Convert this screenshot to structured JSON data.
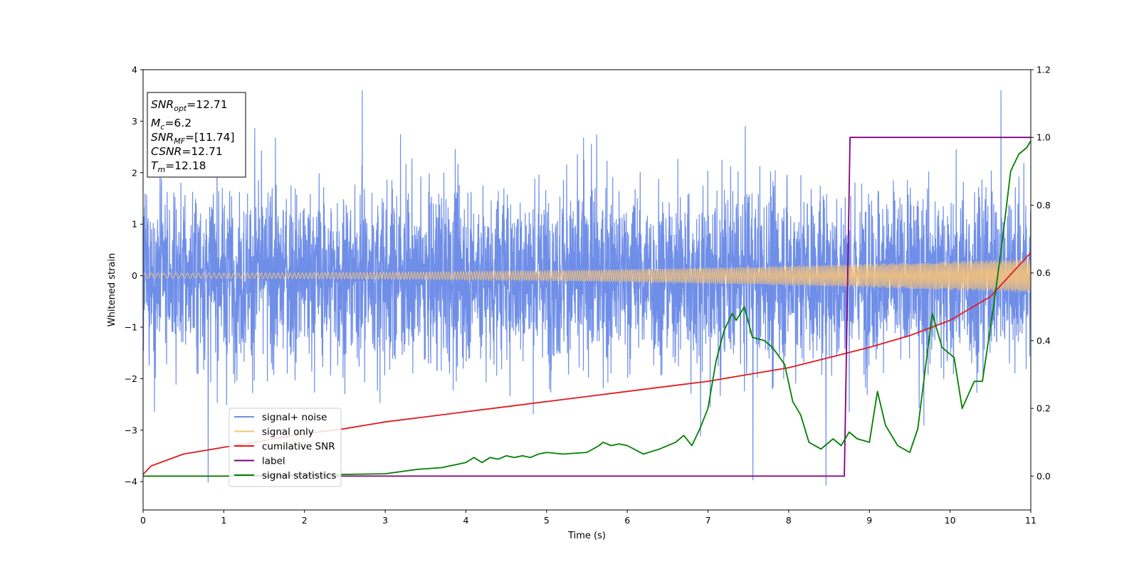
{
  "chart_data": {
    "type": "line",
    "xlabel": "Time (s)",
    "ylabel": "Whitened strain",
    "xlim": [
      0,
      11
    ],
    "ylim_left": [
      -4.55,
      4
    ],
    "ylim_right": [
      -0.1,
      1.2
    ],
    "x_ticks": [
      0,
      1,
      2,
      3,
      4,
      5,
      6,
      7,
      8,
      9,
      10,
      11
    ],
    "y_ticks_left": [
      4,
      3,
      2,
      1,
      0,
      -1,
      -2,
      -3,
      -4
    ],
    "y_ticks_left_labels": [
      "4",
      "3",
      "2",
      "1",
      "0",
      "−1",
      "−2",
      "−3",
      "−4"
    ],
    "y_ticks_right": [
      1.2,
      1.0,
      0.8,
      0.6,
      0.4,
      0.2,
      0.0
    ],
    "y_ticks_right_labels": [
      "1.2",
      "1.0",
      "0.8",
      "0.6",
      "0.4",
      "0.2",
      "0.0"
    ],
    "grid": false,
    "legend_position": "lower-left",
    "series": [
      {
        "name": "signal+ noise",
        "color": "#6f8ee8",
        "axis": "left",
        "kind": "noise",
        "amplitude_envelope": {
          "typical": 1.0,
          "peak": 3.6
        }
      },
      {
        "name": "signal only",
        "color": "#f5c27a",
        "axis": "left",
        "kind": "chirp",
        "amplitude_start": 0.05,
        "amplitude_end": 0.33
      },
      {
        "name": "cumilative SNR",
        "color": "#e31a1c",
        "axis": "right",
        "x": [
          0,
          0.1,
          0.5,
          1,
          1.5,
          2,
          2.5,
          3,
          3.5,
          4,
          4.5,
          5,
          5.5,
          6,
          6.5,
          7,
          7.5,
          8,
          8.5,
          9,
          9.5,
          10,
          10.5,
          11
        ],
        "y": [
          0.005,
          0.03,
          0.065,
          0.085,
          0.105,
          0.125,
          0.14,
          0.16,
          0.175,
          0.19,
          0.205,
          0.22,
          0.235,
          0.25,
          0.265,
          0.28,
          0.3,
          0.32,
          0.35,
          0.38,
          0.415,
          0.46,
          0.53,
          0.66
        ]
      },
      {
        "name": "label",
        "color": "#800080",
        "axis": "right",
        "x": [
          0,
          8.69,
          8.76,
          11
        ],
        "y": [
          0,
          0,
          1,
          1
        ]
      },
      {
        "name": "signal statistics",
        "color": "#007f00",
        "axis": "right",
        "x": [
          0,
          0.5,
          1,
          1.5,
          2,
          2.5,
          3,
          3.4,
          3.7,
          4.0,
          4.1,
          4.2,
          4.3,
          4.4,
          4.5,
          4.6,
          4.7,
          4.8,
          4.9,
          5.0,
          5.2,
          5.5,
          5.65,
          5.7,
          5.8,
          5.9,
          6.0,
          6.2,
          6.4,
          6.6,
          6.7,
          6.8,
          6.9,
          7.0,
          7.1,
          7.2,
          7.3,
          7.35,
          7.45,
          7.55,
          7.7,
          7.8,
          7.95,
          8.05,
          8.15,
          8.25,
          8.4,
          8.55,
          8.65,
          8.75,
          8.85,
          9.0,
          9.1,
          9.2,
          9.35,
          9.5,
          9.6,
          9.7,
          9.78,
          9.9,
          10.05,
          10.15,
          10.3,
          10.4,
          10.55,
          10.65,
          10.75,
          10.85,
          10.95,
          11
        ],
        "y": [
          0,
          0,
          0,
          0.002,
          0.003,
          0.005,
          0.007,
          0.02,
          0.025,
          0.04,
          0.055,
          0.04,
          0.055,
          0.05,
          0.06,
          0.055,
          0.06,
          0.055,
          0.065,
          0.07,
          0.065,
          0.07,
          0.09,
          0.1,
          0.09,
          0.095,
          0.09,
          0.065,
          0.08,
          0.1,
          0.12,
          0.09,
          0.14,
          0.2,
          0.34,
          0.43,
          0.48,
          0.46,
          0.5,
          0.41,
          0.4,
          0.38,
          0.33,
          0.22,
          0.18,
          0.1,
          0.08,
          0.11,
          0.09,
          0.13,
          0.11,
          0.1,
          0.25,
          0.15,
          0.09,
          0.07,
          0.14,
          0.33,
          0.48,
          0.38,
          0.35,
          0.2,
          0.28,
          0.28,
          0.52,
          0.7,
          0.9,
          0.95,
          0.97,
          0.99
        ]
      }
    ],
    "info_box": {
      "snr_opt": {
        "base": "SNR",
        "sub": "opt",
        "value": "=12.71"
      },
      "mc": {
        "base": "M",
        "sub": "c",
        "value": "=6.2"
      },
      "snr_mf": {
        "base": "SNR",
        "sub": "MF",
        "value": "=[11.74]"
      },
      "csnr": {
        "base": "CSNR",
        "value": "=12.71"
      },
      "tm": {
        "base": "T",
        "sub": "m",
        "value": "=12.18"
      }
    }
  }
}
